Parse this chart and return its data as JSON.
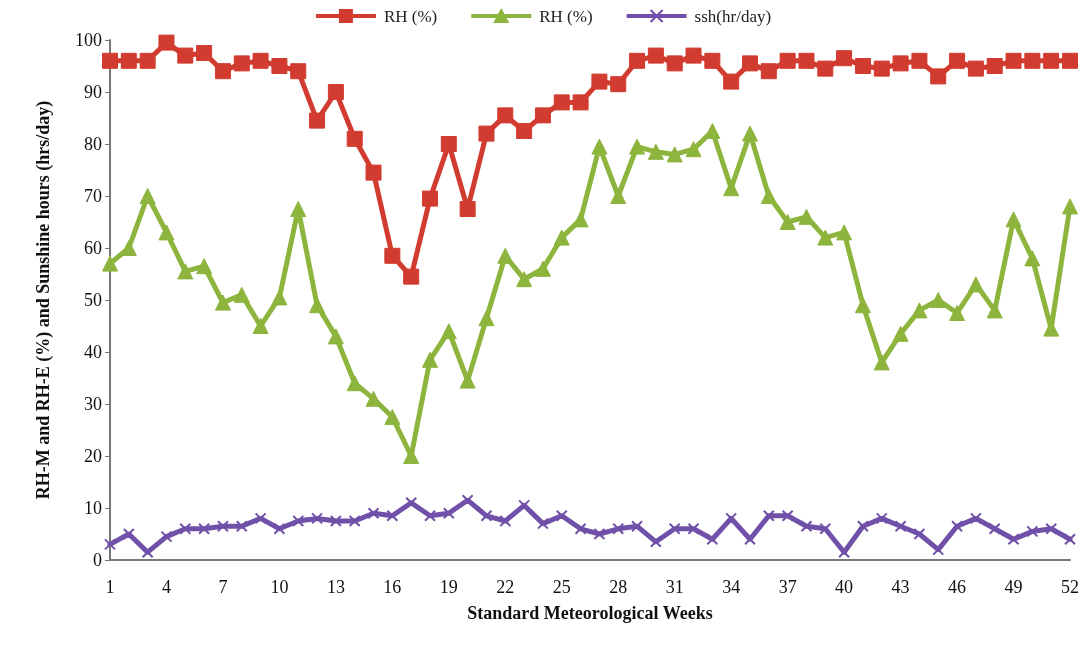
{
  "chart_data": {
    "type": "line",
    "xlabel": "Standard Meteorological Weeks",
    "ylabel": "RH-M and RH-E (%) and Sunshine hours (hrs/day)",
    "categories": [
      "1",
      null,
      null,
      "4",
      null,
      null,
      "7",
      null,
      null,
      "10",
      null,
      null,
      "13",
      null,
      null,
      "16",
      null,
      null,
      "19",
      null,
      null,
      "22",
      null,
      null,
      "25",
      null,
      null,
      "28",
      null,
      null,
      "31",
      null,
      null,
      "34",
      null,
      null,
      "37",
      null,
      null,
      "40",
      null,
      null,
      "43",
      null,
      null,
      "46",
      null,
      null,
      "49",
      null,
      null,
      "52"
    ],
    "series": [
      {
        "name": "RH (%)",
        "color": "#d23b30",
        "marker": "square",
        "values": [
          96,
          96,
          96,
          99.5,
          97,
          97.5,
          94,
          95.5,
          96,
          95,
          94,
          84.5,
          90,
          81,
          74.5,
          58.5,
          54.5,
          69.5,
          80,
          67.5,
          82,
          85.5,
          82.5,
          85.5,
          88,
          88,
          92,
          91.5,
          96,
          97,
          95.5,
          97,
          96,
          92,
          95.5,
          94,
          96,
          96,
          94.5,
          96.5,
          95,
          94.5,
          95.5,
          96,
          93,
          96,
          94.5,
          95,
          96,
          96,
          96,
          96
        ]
      },
      {
        "name": "RH (%)",
        "color": "#8db43c",
        "marker": "triangle",
        "values": [
          57,
          60,
          70,
          63,
          55.5,
          56.5,
          49.5,
          51,
          45,
          50.5,
          67.5,
          49,
          43,
          34,
          31,
          27.5,
          20,
          38.5,
          44,
          34.5,
          46.5,
          58.5,
          54,
          56,
          62,
          65.5,
          79.5,
          70,
          79.5,
          78.5,
          78,
          79,
          82.5,
          71.5,
          82,
          70,
          65,
          66,
          62,
          63,
          49,
          38,
          43.5,
          48,
          50,
          47.5,
          53,
          48,
          65.5,
          58,
          44.5,
          68
        ]
      },
      {
        "name": "ssh(hr/day)",
        "color": "#7050a8",
        "marker": "cross",
        "values": [
          3,
          5,
          1.5,
          4.5,
          6,
          6,
          6.5,
          6.5,
          8,
          6,
          7.5,
          8,
          7.5,
          7.5,
          9,
          8.5,
          11,
          8.5,
          9,
          11.5,
          8.5,
          7.5,
          10.5,
          7,
          8.5,
          6,
          5,
          6,
          6.5,
          3.5,
          6,
          6,
          4,
          8,
          4,
          8.5,
          8.5,
          6.5,
          6,
          1.5,
          6.5,
          8,
          6.5,
          5,
          2,
          6.5,
          8,
          6,
          4,
          5.5,
          6,
          4
        ]
      }
    ],
    "ylim": [
      0,
      100
    ],
    "yticks": [
      0,
      10,
      20,
      30,
      40,
      50,
      60,
      70,
      80,
      90,
      100
    ],
    "grid": false,
    "legend": "top",
    "line_style": "solid"
  }
}
